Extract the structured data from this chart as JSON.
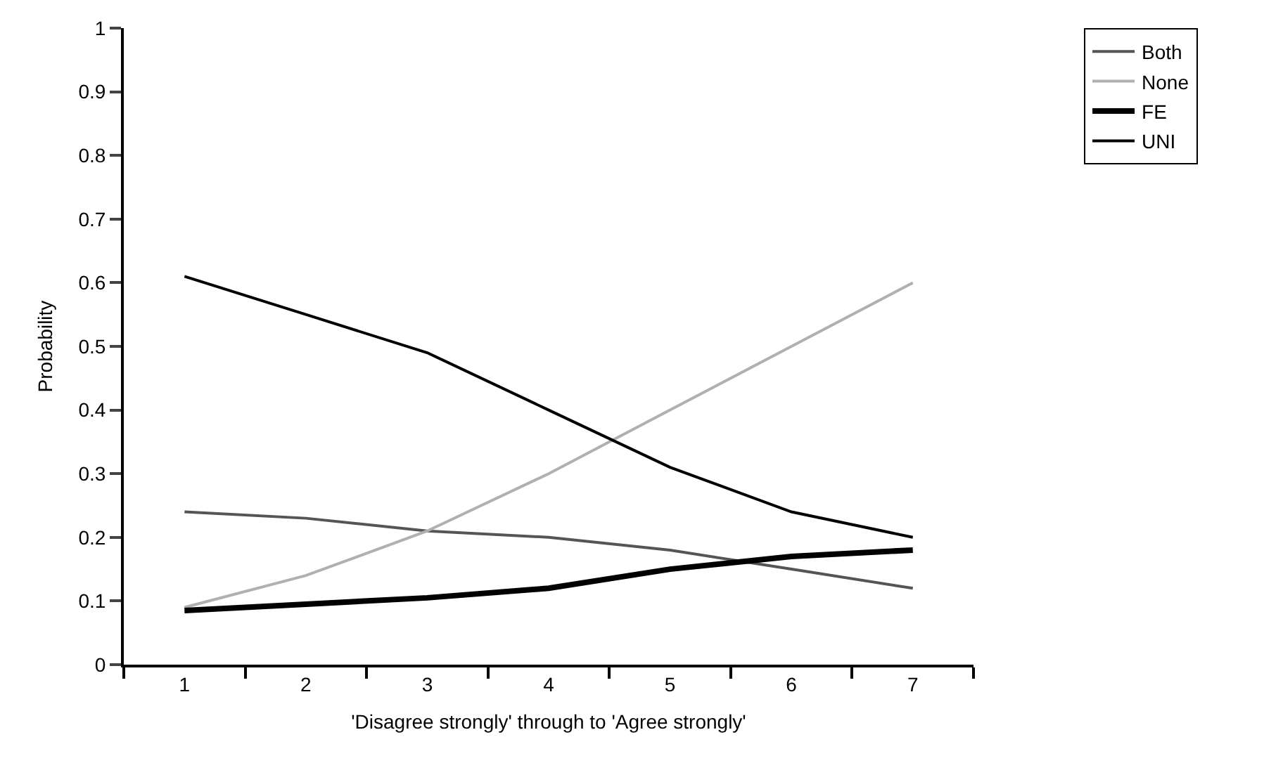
{
  "chart_data": {
    "type": "line",
    "xlabel": "'Disagree strongly' through to 'Agree strongly'",
    "ylabel": "Probability",
    "categories": [
      "1",
      "2",
      "3",
      "4",
      "5",
      "6",
      "7"
    ],
    "series": [
      {
        "name": "Both",
        "color": "#555555",
        "values": [
          0.24,
          0.23,
          0.21,
          0.2,
          0.18,
          0.15,
          0.12
        ]
      },
      {
        "name": "None",
        "color": "#b0b0b0",
        "values": [
          0.09,
          0.14,
          0.21,
          0.3,
          0.4,
          0.5,
          0.6
        ]
      },
      {
        "name": "FE",
        "color": "#000000",
        "values": [
          0.085,
          0.095,
          0.105,
          0.12,
          0.15,
          0.17,
          0.18
        ]
      },
      {
        "name": "UNI",
        "color": "#000000",
        "values": [
          0.61,
          0.55,
          0.49,
          0.4,
          0.31,
          0.24,
          0.2
        ]
      }
    ],
    "ylim": [
      0,
      1
    ],
    "yticks": [
      0,
      0.1,
      0.2,
      0.3,
      0.4,
      0.5,
      0.6,
      0.7,
      0.8,
      0.9,
      1
    ],
    "legend": "top right",
    "marker": "none",
    "line_style": "solid"
  }
}
